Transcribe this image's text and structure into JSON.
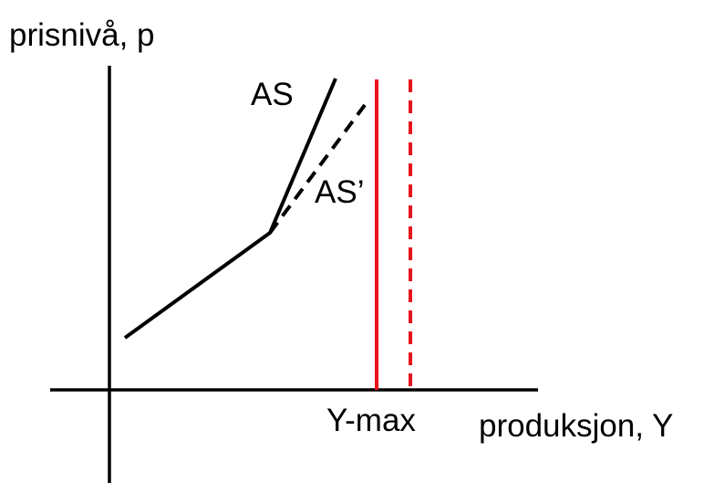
{
  "labels": {
    "y_axis": "prisnivå, p",
    "as": "AS",
    "as_shifted": "AS’",
    "y_max": "Y-max",
    "x_axis": "produksjon, Y"
  }
}
